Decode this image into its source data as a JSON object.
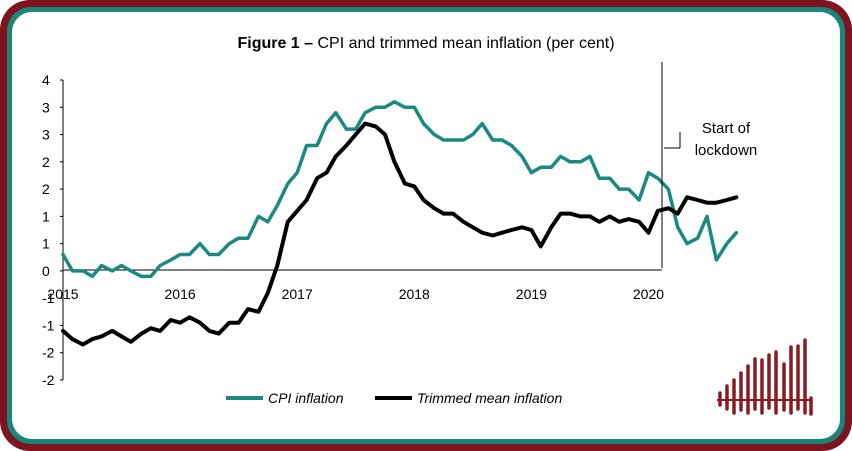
{
  "colors": {
    "frame_outer": "#7d1420",
    "frame_inner": "#1a8579",
    "cpi": "#1a8a80",
    "trimmed": "#000000",
    "logo": "#8a1a24"
  },
  "chart_data": {
    "type": "line",
    "title_prefix": "Figure 1 –",
    "title_text": "CPI and trimmed mean inflation (per cent)",
    "xlabel": "",
    "ylabel": "",
    "x_ticks": [
      "2015",
      "2016",
      "2017",
      "2018",
      "2019",
      "2020"
    ],
    "y_ticks": [
      "4",
      "3",
      "3",
      "2",
      "2",
      "1",
      "1",
      "0",
      "-1",
      "-1",
      "-2",
      "-2"
    ],
    "xlim": [
      2015.0,
      2020.85
    ],
    "ylim": [
      -2.0,
      3.5
    ],
    "grid": false,
    "legend_position": "bottom",
    "annotation": {
      "lines": [
        "Start of",
        "lockdown"
      ],
      "x": 2020.12
    },
    "series": [
      {
        "name": "CPI inflation",
        "color": "#1a8a80",
        "x": [
          2015.0,
          2015.08,
          2015.17,
          2015.25,
          2015.33,
          2015.42,
          2015.5,
          2015.58,
          2015.67,
          2015.75,
          2015.83,
          2015.92,
          2016.0,
          2016.08,
          2016.17,
          2016.25,
          2016.33,
          2016.42,
          2016.5,
          2016.58,
          2016.67,
          2016.75,
          2016.83,
          2016.92,
          2017.0,
          2017.08,
          2017.17,
          2017.25,
          2017.33,
          2017.42,
          2017.5,
          2017.58,
          2017.67,
          2017.75,
          2017.83,
          2017.92,
          2018.0,
          2018.08,
          2018.17,
          2018.25,
          2018.33,
          2018.42,
          2018.5,
          2018.58,
          2018.67,
          2018.75,
          2018.83,
          2018.92,
          2019.0,
          2019.08,
          2019.17,
          2019.25,
          2019.33,
          2019.42,
          2019.5,
          2019.58,
          2019.67,
          2019.75,
          2019.83,
          2019.92,
          2020.0,
          2020.08,
          2020.17,
          2020.25,
          2020.33,
          2020.42,
          2020.5,
          2020.58,
          2020.67,
          2020.75
        ],
        "values": [
          0.3,
          0.0,
          0.0,
          -0.1,
          0.1,
          0.0,
          0.1,
          0.0,
          -0.1,
          -0.1,
          0.1,
          0.2,
          0.3,
          0.3,
          0.5,
          0.3,
          0.3,
          0.5,
          0.6,
          0.6,
          1.0,
          0.9,
          1.2,
          1.6,
          1.8,
          2.3,
          2.3,
          2.7,
          2.9,
          2.6,
          2.6,
          2.9,
          3.0,
          3.0,
          3.1,
          3.0,
          3.0,
          2.7,
          2.5,
          2.4,
          2.4,
          2.4,
          2.5,
          2.7,
          2.4,
          2.4,
          2.3,
          2.1,
          1.8,
          1.9,
          1.9,
          2.1,
          2.0,
          2.0,
          2.1,
          1.7,
          1.7,
          1.5,
          1.5,
          1.3,
          1.8,
          1.7,
          1.5,
          0.8,
          0.5,
          0.6,
          1.0,
          0.2,
          0.5,
          0.7
        ]
      },
      {
        "name": "Trimmed mean inflation",
        "color": "#000000",
        "x": [
          2015.0,
          2015.08,
          2015.17,
          2015.25,
          2015.33,
          2015.42,
          2015.5,
          2015.58,
          2015.67,
          2015.75,
          2015.83,
          2015.92,
          2016.0,
          2016.08,
          2016.17,
          2016.25,
          2016.33,
          2016.42,
          2016.5,
          2016.58,
          2016.67,
          2016.75,
          2016.83,
          2016.92,
          2017.0,
          2017.08,
          2017.17,
          2017.25,
          2017.33,
          2017.42,
          2017.5,
          2017.58,
          2017.67,
          2017.75,
          2017.83,
          2017.92,
          2018.0,
          2018.08,
          2018.17,
          2018.25,
          2018.33,
          2018.42,
          2018.5,
          2018.58,
          2018.67,
          2018.75,
          2018.83,
          2018.92,
          2019.0,
          2019.08,
          2019.17,
          2019.25,
          2019.33,
          2019.42,
          2019.5,
          2019.58,
          2019.67,
          2019.75,
          2019.83,
          2019.92,
          2020.0,
          2020.08,
          2020.17,
          2020.25,
          2020.33,
          2020.42,
          2020.5,
          2020.58,
          2020.67,
          2020.75
        ],
        "values": [
          -1.1,
          -1.25,
          -1.35,
          -1.25,
          -1.2,
          -1.1,
          -1.2,
          -1.3,
          -1.15,
          -1.05,
          -1.1,
          -0.9,
          -0.95,
          -0.85,
          -0.95,
          -1.1,
          -1.15,
          -0.95,
          -0.95,
          -0.7,
          -0.75,
          -0.4,
          0.1,
          0.9,
          1.1,
          1.3,
          1.7,
          1.8,
          2.1,
          2.3,
          2.5,
          2.7,
          2.65,
          2.5,
          2.0,
          1.6,
          1.55,
          1.3,
          1.15,
          1.05,
          1.05,
          0.9,
          0.8,
          0.7,
          0.65,
          0.7,
          0.75,
          0.8,
          0.75,
          0.45,
          0.8,
          1.05,
          1.05,
          1.0,
          1.0,
          0.9,
          1.0,
          0.9,
          0.95,
          0.9,
          0.7,
          1.1,
          1.15,
          1.05,
          1.35,
          1.3,
          1.25,
          1.25,
          1.3,
          1.35
        ]
      }
    ]
  }
}
